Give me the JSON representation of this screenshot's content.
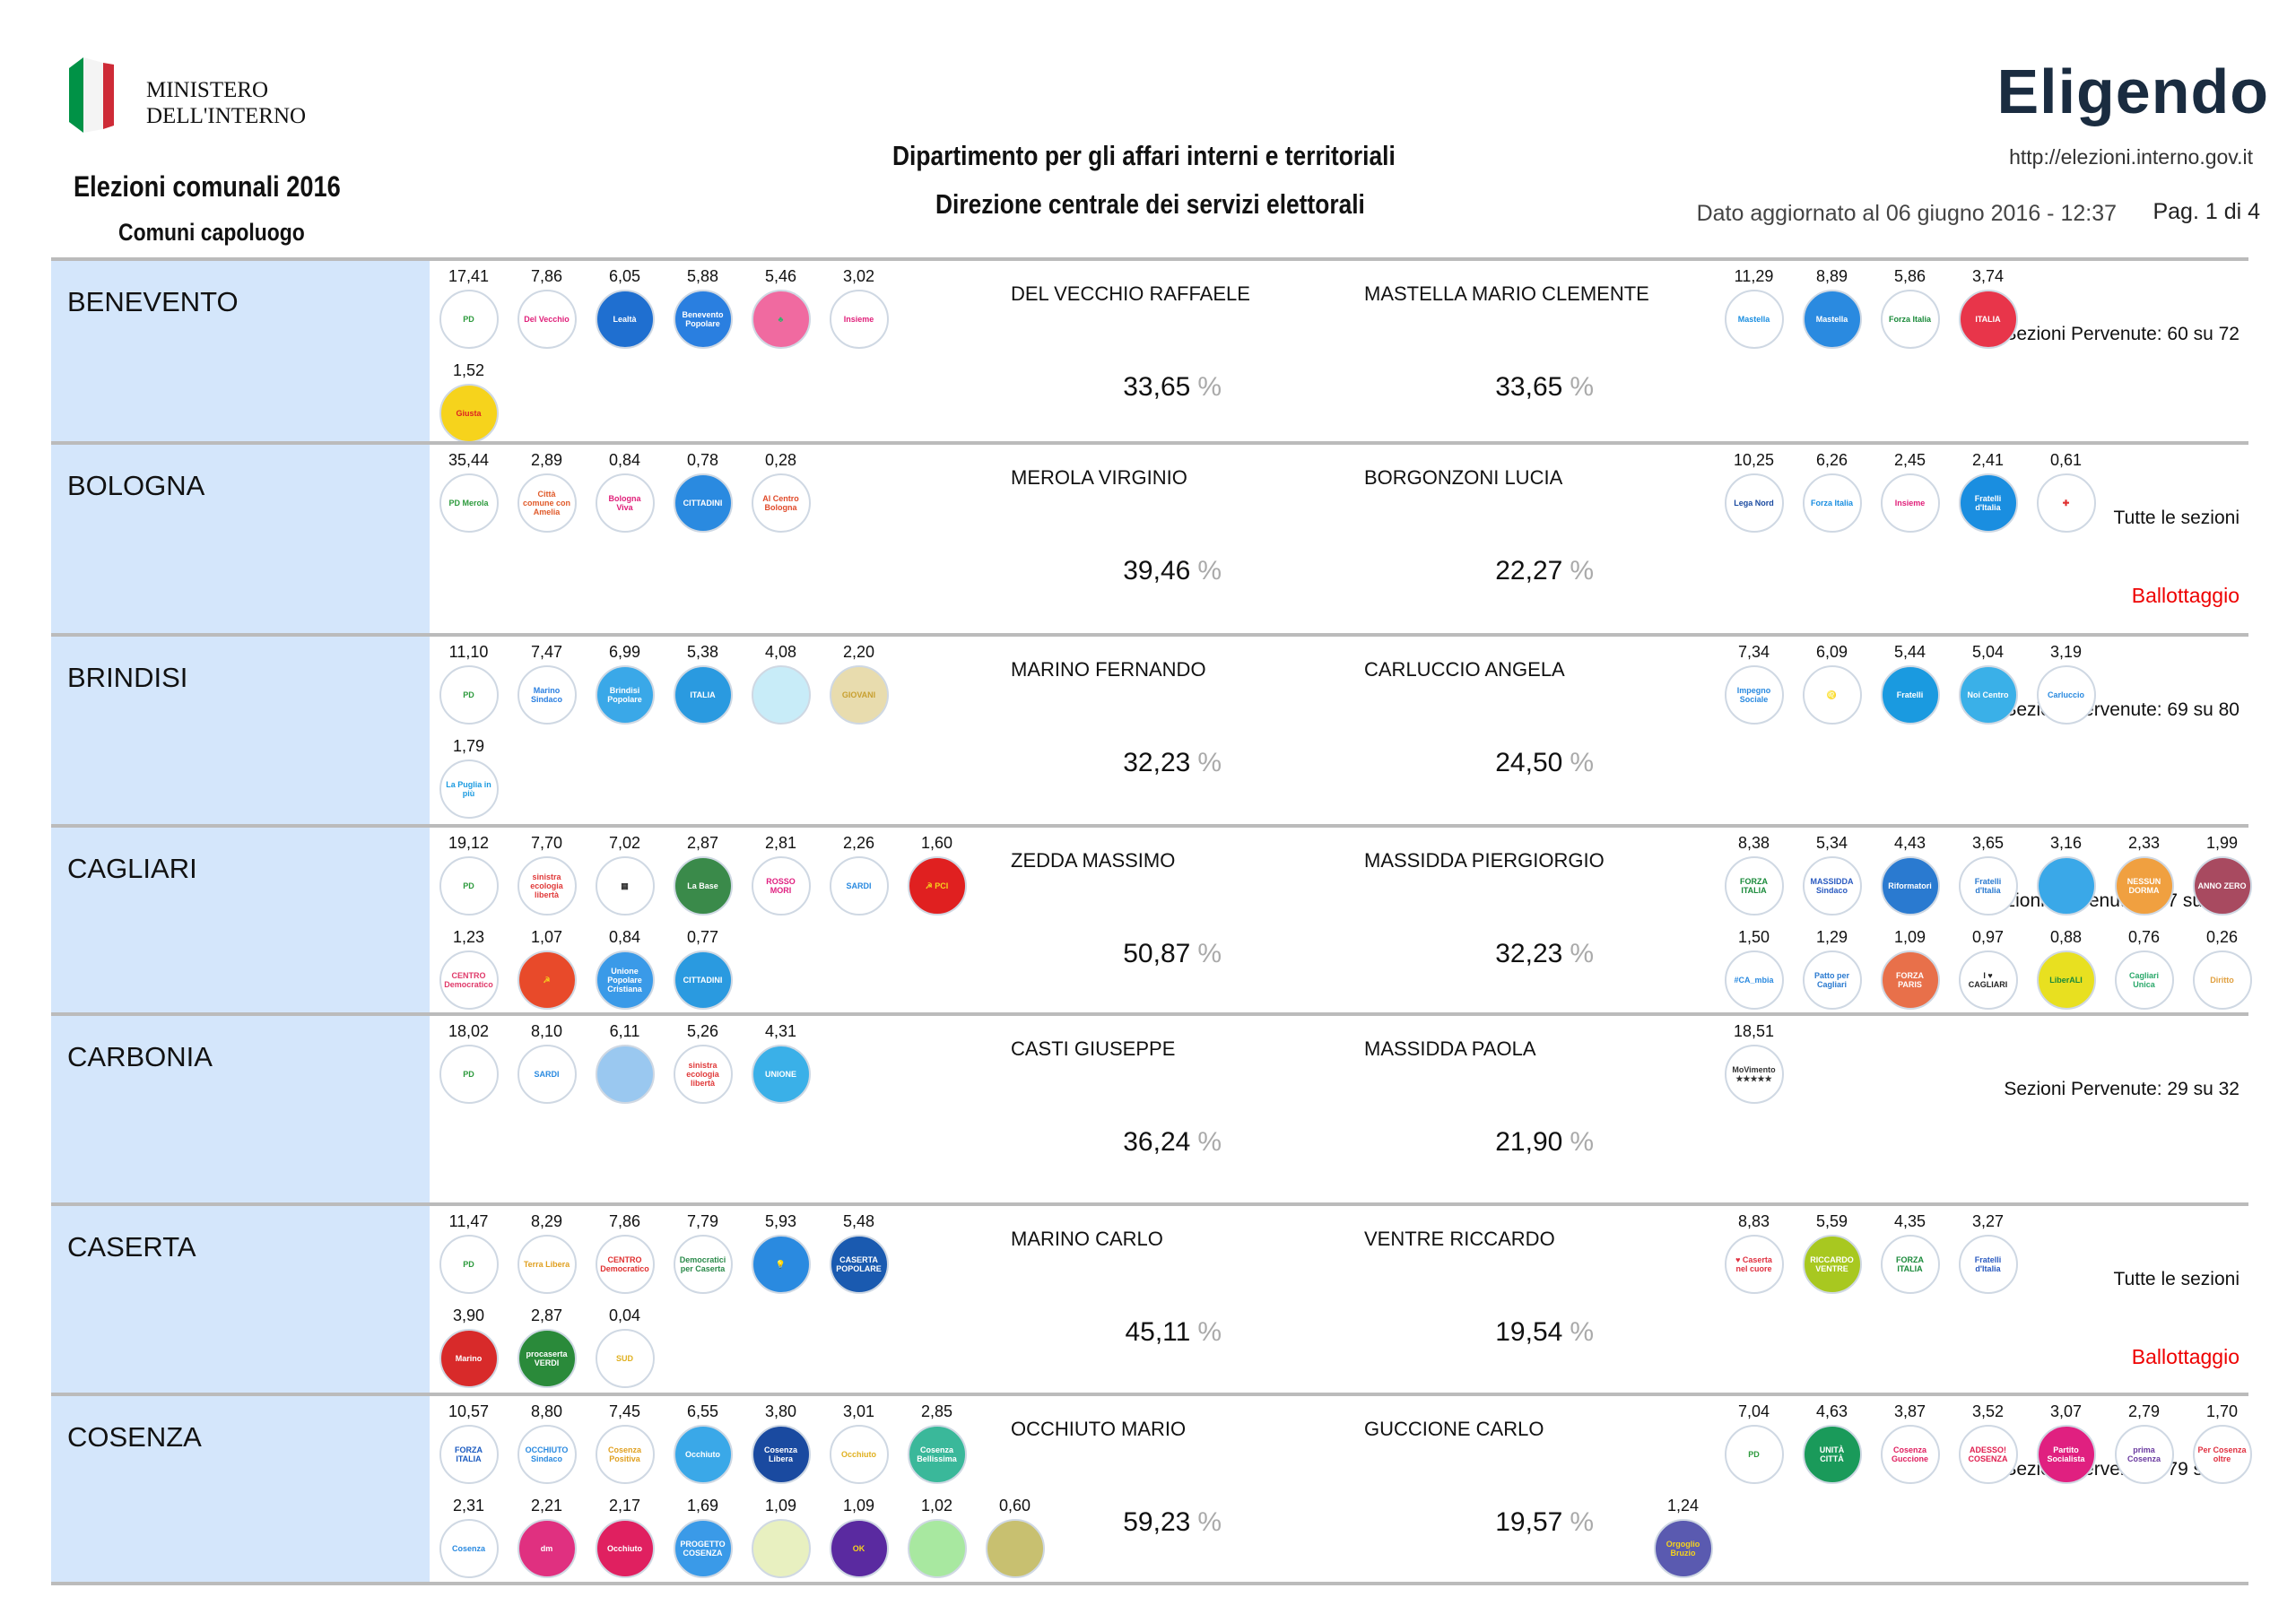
{
  "header": {
    "ministry_line1": "MINISTERO",
    "ministry_line2": "DELL'INTERNO",
    "title": "Elezioni comunali 2016",
    "subtitle": "Comuni capoluogo",
    "dept1": "Dipartimento per gli affari interni e territoriali",
    "dept2": "Direzione centrale dei servizi elettorali",
    "brand": "Eligendo",
    "url": "http://elezioni.interno.gov.it",
    "updated": "Dato aggiornato al 06 giugno 2016 - 12:37",
    "page": "Pag. 1 di 4",
    "flag_colors": [
      "#009246",
      "#ffffff",
      "#ce2b37"
    ]
  },
  "pct_sign": "%",
  "cities": [
    {
      "name": "BENEVENTO",
      "sezioni": "Sezioni Pervenute: 60 su 72",
      "ballottaggio": "",
      "cand1": {
        "name": "DEL VECCHIO RAFFAELE",
        "pct": "33,65"
      },
      "cand2": {
        "name": "MASTELLA MARIO CLEMENTE",
        "pct": "33,65"
      },
      "left": [
        [
          {
            "v": "17,41",
            "t": "PD",
            "bg": "#fff",
            "fg": "#2c9a3c"
          },
          {
            "v": "7,86",
            "t": "Del Vecchio",
            "bg": "#fff",
            "fg": "#e0207a"
          },
          {
            "v": "6,05",
            "t": "Lealtà",
            "bg": "#1f6fd0",
            "fg": "#fff"
          },
          {
            "v": "5,88",
            "t": "Benevento Popolare",
            "bg": "#2a7fe0",
            "fg": "#fff"
          },
          {
            "v": "5,46",
            "t": "♣",
            "bg": "#f06aa0",
            "fg": "#2bb56b"
          },
          {
            "v": "3,02",
            "t": "Insieme",
            "bg": "#fff",
            "fg": "#e0207a"
          }
        ],
        [
          {
            "v": "1,52",
            "t": "Giusta",
            "bg": "#f6d31c",
            "fg": "#d22"
          }
        ]
      ],
      "right": [
        [
          {
            "v": "11,29",
            "t": "Mastella",
            "bg": "#fff",
            "fg": "#1a8ee0"
          },
          {
            "v": "8,89",
            "t": "Mastella",
            "bg": "#2a8ae0",
            "fg": "#fff"
          },
          {
            "v": "5,86",
            "t": "Forza Italia",
            "bg": "#fff",
            "fg": "#1a8a3a"
          },
          {
            "v": "3,74",
            "t": "ITALIA",
            "bg": "#e8354a",
            "fg": "#fff"
          }
        ]
      ]
    },
    {
      "name": "BOLOGNA",
      "sezioni": "Tutte le sezioni",
      "ballottaggio": "Ballottaggio",
      "cand1": {
        "name": "MEROLA VIRGINIO",
        "pct": "39,46"
      },
      "cand2": {
        "name": "BORGONZONI LUCIA",
        "pct": "22,27"
      },
      "left": [
        [
          {
            "v": "35,44",
            "t": "PD Merola",
            "bg": "#fff",
            "fg": "#2c9a3c"
          },
          {
            "v": "2,89",
            "t": "Città comune con Amelia",
            "bg": "#fff",
            "fg": "#e05a2a"
          },
          {
            "v": "0,84",
            "t": "Bologna Viva",
            "bg": "#fff",
            "fg": "#e0207a"
          },
          {
            "v": "0,78",
            "t": "CITTADINI",
            "bg": "#2a8ae0",
            "fg": "#fff"
          },
          {
            "v": "0,28",
            "t": "Al Centro Bologna",
            "bg": "#fff",
            "fg": "#e04a2a"
          }
        ]
      ],
      "right": [
        [
          {
            "v": "10,25",
            "t": "Lega Nord",
            "bg": "#fff",
            "fg": "#1a4aa0"
          },
          {
            "v": "6,26",
            "t": "Forza Italia",
            "bg": "#fff",
            "fg": "#1a8ee0"
          },
          {
            "v": "2,45",
            "t": "Insieme",
            "bg": "#fff",
            "fg": "#e0207a"
          },
          {
            "v": "2,41",
            "t": "Fratelli d'Italia",
            "bg": "#1a8ee0",
            "fg": "#fff"
          },
          {
            "v": "0,61",
            "t": "✚",
            "bg": "#fff",
            "fg": "#e03030"
          }
        ]
      ]
    },
    {
      "name": "BRINDISI",
      "sezioni": "Sezioni Pervenute: 69 su 80",
      "ballottaggio": "",
      "cand1": {
        "name": "MARINO FERNANDO",
        "pct": "32,23"
      },
      "cand2": {
        "name": "CARLUCCIO ANGELA",
        "pct": "24,50"
      },
      "left": [
        [
          {
            "v": "11,10",
            "t": "PD",
            "bg": "#fff",
            "fg": "#2c9a3c"
          },
          {
            "v": "7,47",
            "t": "Marino Sindaco",
            "bg": "#fff",
            "fg": "#2a7fe0"
          },
          {
            "v": "6,99",
            "t": "Brindisi Popolare",
            "bg": "#3aa8e8",
            "fg": "#fff"
          },
          {
            "v": "5,38",
            "t": "ITALIA",
            "bg": "#2a9ae0",
            "fg": "#fff"
          },
          {
            "v": "4,08",
            "t": "",
            "bg": "#c8ecf8",
            "fg": "#2a8ae0"
          },
          {
            "v": "2,20",
            "t": "GIOVANI",
            "bg": "#e8dcae",
            "fg": "#c8a030"
          }
        ],
        [
          {
            "v": "1,79",
            "t": "La Puglia in più",
            "bg": "#fff",
            "fg": "#1a9ae0"
          }
        ]
      ],
      "right": [
        [
          {
            "v": "7,34",
            "t": "Impegno Sociale",
            "bg": "#fff",
            "fg": "#2a8ae0"
          },
          {
            "v": "6,09",
            "t": "♌",
            "bg": "#fff",
            "fg": "#2a7fe0"
          },
          {
            "v": "5,44",
            "t": "Fratelli",
            "bg": "#1a9ae0",
            "fg": "#fff"
          },
          {
            "v": "5,04",
            "t": "Noi Centro",
            "bg": "#3ab0e8",
            "fg": "#fff"
          },
          {
            "v": "3,19",
            "t": "Carluccio",
            "bg": "#fff",
            "fg": "#2a8ae0"
          }
        ]
      ]
    },
    {
      "name": "CAGLIARI",
      "sezioni": "Sezioni Pervenute: 167 su 174",
      "ballottaggio": "",
      "cand1": {
        "name": "ZEDDA MASSIMO",
        "pct": "50,87"
      },
      "cand2": {
        "name": "MASSIDDA PIERGIORGIO",
        "pct": "32,23"
      },
      "left": [
        [
          {
            "v": "19,12",
            "t": "PD",
            "bg": "#fff",
            "fg": "#2c9a3c"
          },
          {
            "v": "7,70",
            "t": "sinistra ecologia libertà",
            "bg": "#fff",
            "fg": "#e03a3a"
          },
          {
            "v": "7,02",
            "t": "▦",
            "bg": "#fff",
            "fg": "#333"
          },
          {
            "v": "2,87",
            "t": "La Base",
            "bg": "#3a8a4a",
            "fg": "#fff"
          },
          {
            "v": "2,81",
            "t": "ROSSO MORI",
            "bg": "#fff",
            "fg": "#e02080"
          },
          {
            "v": "2,26",
            "t": "SARDI",
            "bg": "#fff",
            "fg": "#2a8ae0"
          },
          {
            "v": "1,60",
            "t": "☭ PCI",
            "bg": "#e02020",
            "fg": "#f6d31c"
          }
        ],
        [
          {
            "v": "1,23",
            "t": "CENTRO Democratico",
            "bg": "#fff",
            "fg": "#e03a6a"
          },
          {
            "v": "1,07",
            "t": "☭",
            "bg": "#e84a2a",
            "fg": "#f6d31c"
          },
          {
            "v": "0,84",
            "t": "Unione Popolare Cristiana",
            "bg": "#3a9ae8",
            "fg": "#fff"
          },
          {
            "v": "0,77",
            "t": "CITTADINI",
            "bg": "#2a9ae0",
            "fg": "#fff"
          }
        ]
      ],
      "right": [
        [
          {
            "v": "8,38",
            "t": "FORZA ITALIA",
            "bg": "#fff",
            "fg": "#1a8a3a"
          },
          {
            "v": "5,34",
            "t": "MASSIDDA Sindaco",
            "bg": "#fff",
            "fg": "#2a5ac0"
          },
          {
            "v": "4,43",
            "t": "Riformatori",
            "bg": "#2a7ad0",
            "fg": "#fff"
          },
          {
            "v": "3,65",
            "t": "Fratelli d'Italia",
            "bg": "#fff",
            "fg": "#2a7ad0"
          },
          {
            "v": "3,16",
            "t": "",
            "bg": "#3aa8e8",
            "fg": "#fff"
          },
          {
            "v": "2,33",
            "t": "NESSUN DORMA",
            "bg": "#f0a040",
            "fg": "#fff"
          },
          {
            "v": "1,99",
            "t": "ANNO ZERO",
            "bg": "#a84a60",
            "fg": "#fff"
          }
        ],
        [
          {
            "v": "1,50",
            "t": "#CA_mbia",
            "bg": "#fff",
            "fg": "#2a8ae0"
          },
          {
            "v": "1,29",
            "t": "Patto per Cagliari",
            "bg": "#fff",
            "fg": "#2a7ad0"
          },
          {
            "v": "1,09",
            "t": "FORZA PARIS",
            "bg": "#e8704a",
            "fg": "#fff"
          },
          {
            "v": "0,97",
            "t": "I ♥ CAGLIARI",
            "bg": "#fff",
            "fg": "#222"
          },
          {
            "v": "0,88",
            "t": "LiberALI",
            "bg": "#e8e020",
            "fg": "#1a8a3a"
          },
          {
            "v": "0,76",
            "t": "Cagliari Unica",
            "bg": "#fff",
            "fg": "#2aa86a"
          },
          {
            "v": "0,26",
            "t": "Diritto",
            "bg": "#fff",
            "fg": "#e0a040"
          }
        ]
      ]
    },
    {
      "name": "CARBONIA",
      "sezioni": "Sezioni Pervenute: 29 su 32",
      "ballottaggio": "",
      "cand1": {
        "name": "CASTI GIUSEPPE",
        "pct": "36,24"
      },
      "cand2": {
        "name": "MASSIDDA PAOLA",
        "pct": "21,90"
      },
      "left": [
        [
          {
            "v": "18,02",
            "t": "PD",
            "bg": "#fff",
            "fg": "#2c9a3c"
          },
          {
            "v": "8,10",
            "t": "SARDI",
            "bg": "#fff",
            "fg": "#2a8ae0"
          },
          {
            "v": "6,11",
            "t": "",
            "bg": "#9ac8f0",
            "fg": "#fff"
          },
          {
            "v": "5,26",
            "t": "sinistra ecologia libertà",
            "bg": "#fff",
            "fg": "#e03a3a"
          },
          {
            "v": "4,31",
            "t": "UNIONE",
            "bg": "#3ab0e8",
            "fg": "#fff"
          }
        ]
      ],
      "right": [
        [
          {
            "v": "18,51",
            "t": "MoVimento ★★★★★",
            "bg": "#fff",
            "fg": "#333"
          }
        ]
      ]
    },
    {
      "name": "CASERTA",
      "sezioni": "Tutte le sezioni",
      "ballottaggio": "Ballottaggio",
      "cand1": {
        "name": "MARINO CARLO",
        "pct": "45,11"
      },
      "cand2": {
        "name": "VENTRE RICCARDO",
        "pct": "19,54"
      },
      "left": [
        [
          {
            "v": "11,47",
            "t": "PD",
            "bg": "#fff",
            "fg": "#2c9a3c"
          },
          {
            "v": "8,29",
            "t": "Terra Libera",
            "bg": "#fff",
            "fg": "#e0a020"
          },
          {
            "v": "7,86",
            "t": "CENTRO Democratico",
            "bg": "#fff",
            "fg": "#e03030"
          },
          {
            "v": "7,79",
            "t": "Democratici per Caserta",
            "bg": "#fff",
            "fg": "#2a8a4a"
          },
          {
            "v": "5,93",
            "t": "💡",
            "bg": "#2a8ae0",
            "fg": "#f6d31c"
          },
          {
            "v": "5,48",
            "t": "CASERTA POPOLARE",
            "bg": "#1a5ab0",
            "fg": "#fff"
          }
        ],
        [
          {
            "v": "3,90",
            "t": "Marino",
            "bg": "#d82a2a",
            "fg": "#fff"
          },
          {
            "v": "2,87",
            "t": "procaserta VERDI",
            "bg": "#2a8a3a",
            "fg": "#fff"
          },
          {
            "v": "0,04",
            "t": "SUD",
            "bg": "#fff",
            "fg": "#e0b020"
          }
        ]
      ],
      "right": [
        [
          {
            "v": "8,83",
            "t": "♥ Caserta nel cuore",
            "bg": "#fff",
            "fg": "#e03040"
          },
          {
            "v": "5,59",
            "t": "RICCARDO VENTRE",
            "bg": "#a8c820",
            "fg": "#fff"
          },
          {
            "v": "4,35",
            "t": "FORZA ITALIA",
            "bg": "#fff",
            "fg": "#1a8a3a"
          },
          {
            "v": "3,27",
            "t": "Fratelli d'Italia",
            "bg": "#fff",
            "fg": "#2a5ac0"
          }
        ]
      ]
    },
    {
      "name": "COSENZA",
      "sezioni": "Sezioni Pervenute: 79 su 82",
      "ballottaggio": "",
      "cand1": {
        "name": "OCCHIUTO MARIO",
        "pct": "59,23"
      },
      "cand2": {
        "name": "GUCCIONE CARLO",
        "pct": "19,57"
      },
      "left": [
        [
          {
            "v": "10,57",
            "t": "FORZA ITALIA",
            "bg": "#fff",
            "fg": "#1a5ac0"
          },
          {
            "v": "8,80",
            "t": "OCCHIUTO Sindaco",
            "bg": "#fff",
            "fg": "#2a8ae0"
          },
          {
            "v": "7,45",
            "t": "Cosenza Positiva",
            "bg": "#fff",
            "fg": "#e0a020"
          },
          {
            "v": "6,55",
            "t": "Occhiuto",
            "bg": "#3aa8e8",
            "fg": "#fff"
          },
          {
            "v": "3,80",
            "t": "Cosenza Libera",
            "bg": "#1a4aa0",
            "fg": "#fff"
          },
          {
            "v": "3,01",
            "t": "Occhiuto",
            "bg": "#fff",
            "fg": "#e0b020"
          },
          {
            "v": "2,85",
            "t": "Cosenza Bellissima",
            "bg": "#3ab89a",
            "fg": "#fff"
          }
        ],
        [
          {
            "v": "2,31",
            "t": "Cosenza",
            "bg": "#fff",
            "fg": "#2a8ae0"
          },
          {
            "v": "2,21",
            "t": "dm",
            "bg": "#e03080",
            "fg": "#fff"
          },
          {
            "v": "2,17",
            "t": "Occhiuto",
            "bg": "#e02060",
            "fg": "#fff"
          },
          {
            "v": "1,69",
            "t": "PROGETTO COSENZA",
            "bg": "#3a9ae8",
            "fg": "#fff"
          },
          {
            "v": "1,09",
            "t": "",
            "bg": "#e8f0c0",
            "fg": "#c03040"
          },
          {
            "v": "1,09",
            "t": "OK",
            "bg": "#5a2aa0",
            "fg": "#f6d31c"
          },
          {
            "v": "1,02",
            "t": "",
            "bg": "#a8e8a0",
            "fg": "#2a8a3a"
          },
          {
            "v": "0,60",
            "t": "",
            "bg": "#c8c070",
            "fg": "#336"
          }
        ]
      ],
      "right": [
        [
          {
            "v": "7,04",
            "t": "PD",
            "bg": "#fff",
            "fg": "#2c9a3c"
          },
          {
            "v": "4,63",
            "t": "UNITÀ CITTÀ",
            "bg": "#1a9a5a",
            "fg": "#fff"
          },
          {
            "v": "3,87",
            "t": "Cosenza Guccione",
            "bg": "#fff",
            "fg": "#e02060"
          },
          {
            "v": "3,52",
            "t": "ADESSO! COSENZA",
            "bg": "#fff",
            "fg": "#e02050"
          },
          {
            "v": "3,07",
            "t": "Partito Socialista",
            "bg": "#e02080",
            "fg": "#fff"
          },
          {
            "v": "2,79",
            "t": "prima Cosenza",
            "bg": "#fff",
            "fg": "#6a3aa0"
          },
          {
            "v": "1,70",
            "t": "Per Cosenza oltre",
            "bg": "#fff",
            "fg": "#e03040"
          }
        ]
      ],
      "extra": [
        {
          "v": "1,24",
          "t": "Orgoglio Bruzio",
          "bg": "#5a5ab0",
          "fg": "#f6d31c"
        }
      ]
    }
  ]
}
